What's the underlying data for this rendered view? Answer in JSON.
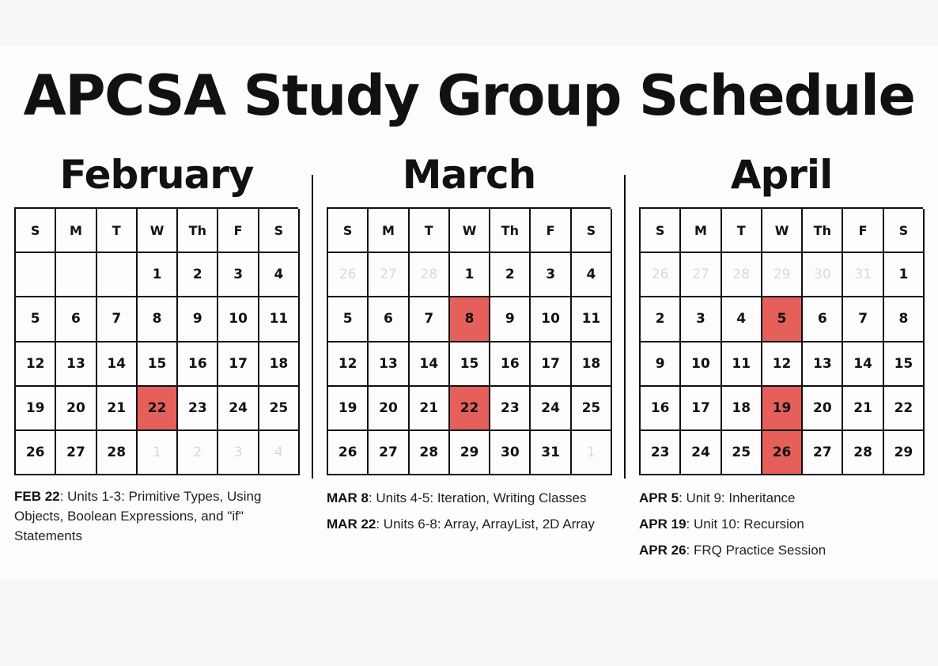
{
  "title": "APCSA Study Group Schedule",
  "weekdays": [
    "S",
    "M",
    "T",
    "W",
    "Th",
    "F",
    "S"
  ],
  "highlight_color": "#e5605b",
  "months": [
    {
      "name": "February",
      "weeks": [
        [
          {
            "d": ""
          },
          {
            "d": ""
          },
          {
            "d": ""
          },
          {
            "d": "1"
          },
          {
            "d": "2"
          },
          {
            "d": "3"
          },
          {
            "d": "4"
          }
        ],
        [
          {
            "d": "5"
          },
          {
            "d": "6"
          },
          {
            "d": "7"
          },
          {
            "d": "8"
          },
          {
            "d": "9"
          },
          {
            "d": "10"
          },
          {
            "d": "11"
          }
        ],
        [
          {
            "d": "12"
          },
          {
            "d": "13"
          },
          {
            "d": "14"
          },
          {
            "d": "15"
          },
          {
            "d": "16"
          },
          {
            "d": "17"
          },
          {
            "d": "18"
          }
        ],
        [
          {
            "d": "19"
          },
          {
            "d": "20"
          },
          {
            "d": "21"
          },
          {
            "d": "22",
            "h": true
          },
          {
            "d": "23"
          },
          {
            "d": "24"
          },
          {
            "d": "25"
          }
        ],
        [
          {
            "d": "26"
          },
          {
            "d": "27"
          },
          {
            "d": "28"
          },
          {
            "d": "1",
            "m": true
          },
          {
            "d": "2",
            "m": true
          },
          {
            "d": "3",
            "m": true
          },
          {
            "d": "4",
            "m": true
          }
        ]
      ],
      "notes": [
        {
          "date": "FEB 22",
          "text": ": Units 1-3: Primitive Types, Using Objects, Boolean Expressions, and \"if\" Statements"
        }
      ]
    },
    {
      "name": "March",
      "weeks": [
        [
          {
            "d": "26",
            "m": true
          },
          {
            "d": "27",
            "m": true
          },
          {
            "d": "28",
            "m": true
          },
          {
            "d": "1"
          },
          {
            "d": "2"
          },
          {
            "d": "3"
          },
          {
            "d": "4"
          }
        ],
        [
          {
            "d": "5"
          },
          {
            "d": "6"
          },
          {
            "d": "7"
          },
          {
            "d": "8",
            "h": true
          },
          {
            "d": "9"
          },
          {
            "d": "10"
          },
          {
            "d": "11"
          }
        ],
        [
          {
            "d": "12"
          },
          {
            "d": "13"
          },
          {
            "d": "14"
          },
          {
            "d": "15"
          },
          {
            "d": "16"
          },
          {
            "d": "17"
          },
          {
            "d": "18"
          }
        ],
        [
          {
            "d": "19"
          },
          {
            "d": "20"
          },
          {
            "d": "21"
          },
          {
            "d": "22",
            "h": true
          },
          {
            "d": "23"
          },
          {
            "d": "24"
          },
          {
            "d": "25"
          }
        ],
        [
          {
            "d": "26"
          },
          {
            "d": "27"
          },
          {
            "d": "28"
          },
          {
            "d": "29"
          },
          {
            "d": "30"
          },
          {
            "d": "31"
          },
          {
            "d": "1",
            "m": true
          }
        ]
      ],
      "notes": [
        {
          "date": "MAR 8",
          "text": ": Units 4-5: Iteration, Writing Classes"
        },
        {
          "date": "MAR 22",
          "text": ": Units 6-8: Array, ArrayList, 2D Array"
        }
      ]
    },
    {
      "name": "April",
      "weeks": [
        [
          {
            "d": "26",
            "m": true
          },
          {
            "d": "27",
            "m": true
          },
          {
            "d": "28",
            "m": true
          },
          {
            "d": "29",
            "m": true
          },
          {
            "d": "30",
            "m": true
          },
          {
            "d": "31",
            "m": true
          },
          {
            "d": "1"
          }
        ],
        [
          {
            "d": "2"
          },
          {
            "d": "3"
          },
          {
            "d": "4"
          },
          {
            "d": "5",
            "h": true
          },
          {
            "d": "6"
          },
          {
            "d": "7"
          },
          {
            "d": "8"
          }
        ],
        [
          {
            "d": "9"
          },
          {
            "d": "10"
          },
          {
            "d": "11"
          },
          {
            "d": "12"
          },
          {
            "d": "13"
          },
          {
            "d": "14"
          },
          {
            "d": "15"
          }
        ],
        [
          {
            "d": "16"
          },
          {
            "d": "17"
          },
          {
            "d": "18"
          },
          {
            "d": "19",
            "h": true
          },
          {
            "d": "20"
          },
          {
            "d": "21"
          },
          {
            "d": "22"
          }
        ],
        [
          {
            "d": "23"
          },
          {
            "d": "24"
          },
          {
            "d": "25"
          },
          {
            "d": "26",
            "h": true
          },
          {
            "d": "27"
          },
          {
            "d": "28"
          },
          {
            "d": "29"
          }
        ]
      ],
      "notes": [
        {
          "date": "APR 5",
          "text": ": Unit 9: Inheritance"
        },
        {
          "date": "APR 19",
          "text": ": Unit 10: Recursion"
        },
        {
          "date": "APR 26",
          "text": ": FRQ Practice Session"
        }
      ]
    }
  ]
}
